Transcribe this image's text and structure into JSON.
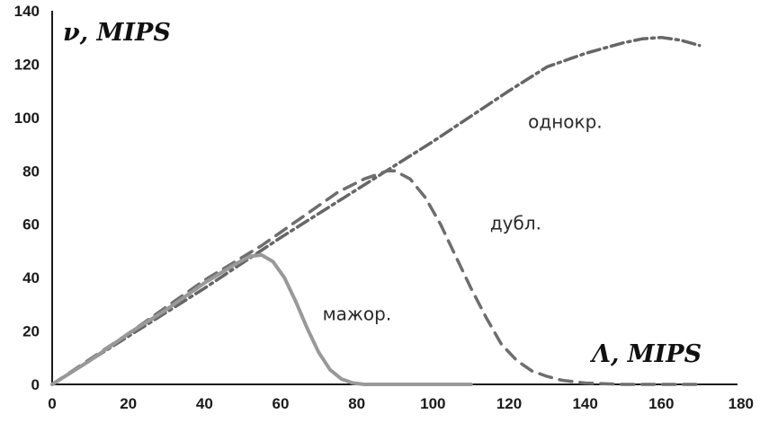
{
  "chart_data": {
    "type": "line",
    "title": "",
    "xlabel": "Λ, MIPS",
    "ylabel": "ν, MIPS",
    "xlim": [
      0,
      180
    ],
    "ylim": [
      0,
      140
    ],
    "xticks": [
      0,
      20,
      40,
      60,
      80,
      100,
      120,
      140,
      160,
      180
    ],
    "yticks": [
      0,
      20,
      40,
      60,
      80,
      100,
      120,
      140
    ],
    "grid": false,
    "series": [
      {
        "name": "однокр.",
        "style": "dash-dot",
        "color": "#666666",
        "x": [
          0,
          20,
          40,
          60,
          80,
          100,
          120,
          130,
          140,
          150,
          155,
          160,
          165,
          170
        ],
        "y": [
          0,
          18,
          36,
          55,
          73,
          91,
          110,
          119,
          124,
          128,
          129.5,
          130,
          129,
          127
        ]
      },
      {
        "name": "дубл.",
        "style": "dashed",
        "color": "#6e6e6e",
        "x": [
          0,
          20,
          40,
          55,
          65,
          75,
          82,
          86,
          88,
          90,
          94,
          98,
          102,
          106,
          110,
          114,
          118,
          122,
          126,
          130,
          134,
          140,
          150,
          160,
          170
        ],
        "y": [
          0,
          19,
          39,
          52,
          62,
          72,
          77,
          79,
          80,
          80,
          77,
          70,
          60,
          48,
          36,
          25,
          15,
          9,
          5,
          3,
          1.5,
          0.5,
          0,
          0,
          0
        ],
        "series_label_x": 115,
        "series_label_y": 58
      },
      {
        "name": "мажор.",
        "style": "solid",
        "color": "#999999",
        "x": [
          0,
          10,
          20,
          30,
          40,
          48,
          52,
          55,
          58,
          61,
          64,
          67,
          70,
          73,
          76,
          79,
          82,
          86,
          90,
          100,
          110
        ],
        "y": [
          0,
          9,
          19,
          28,
          38,
          45,
          48,
          48.5,
          46,
          40,
          31,
          21,
          12,
          5.5,
          2,
          0.5,
          0,
          0,
          0,
          0,
          0
        ],
        "series_label_x": 71,
        "series_label_y": 24
      }
    ],
    "series_label_positions": {
      "однокр.": [
        125,
        96
      ]
    }
  }
}
